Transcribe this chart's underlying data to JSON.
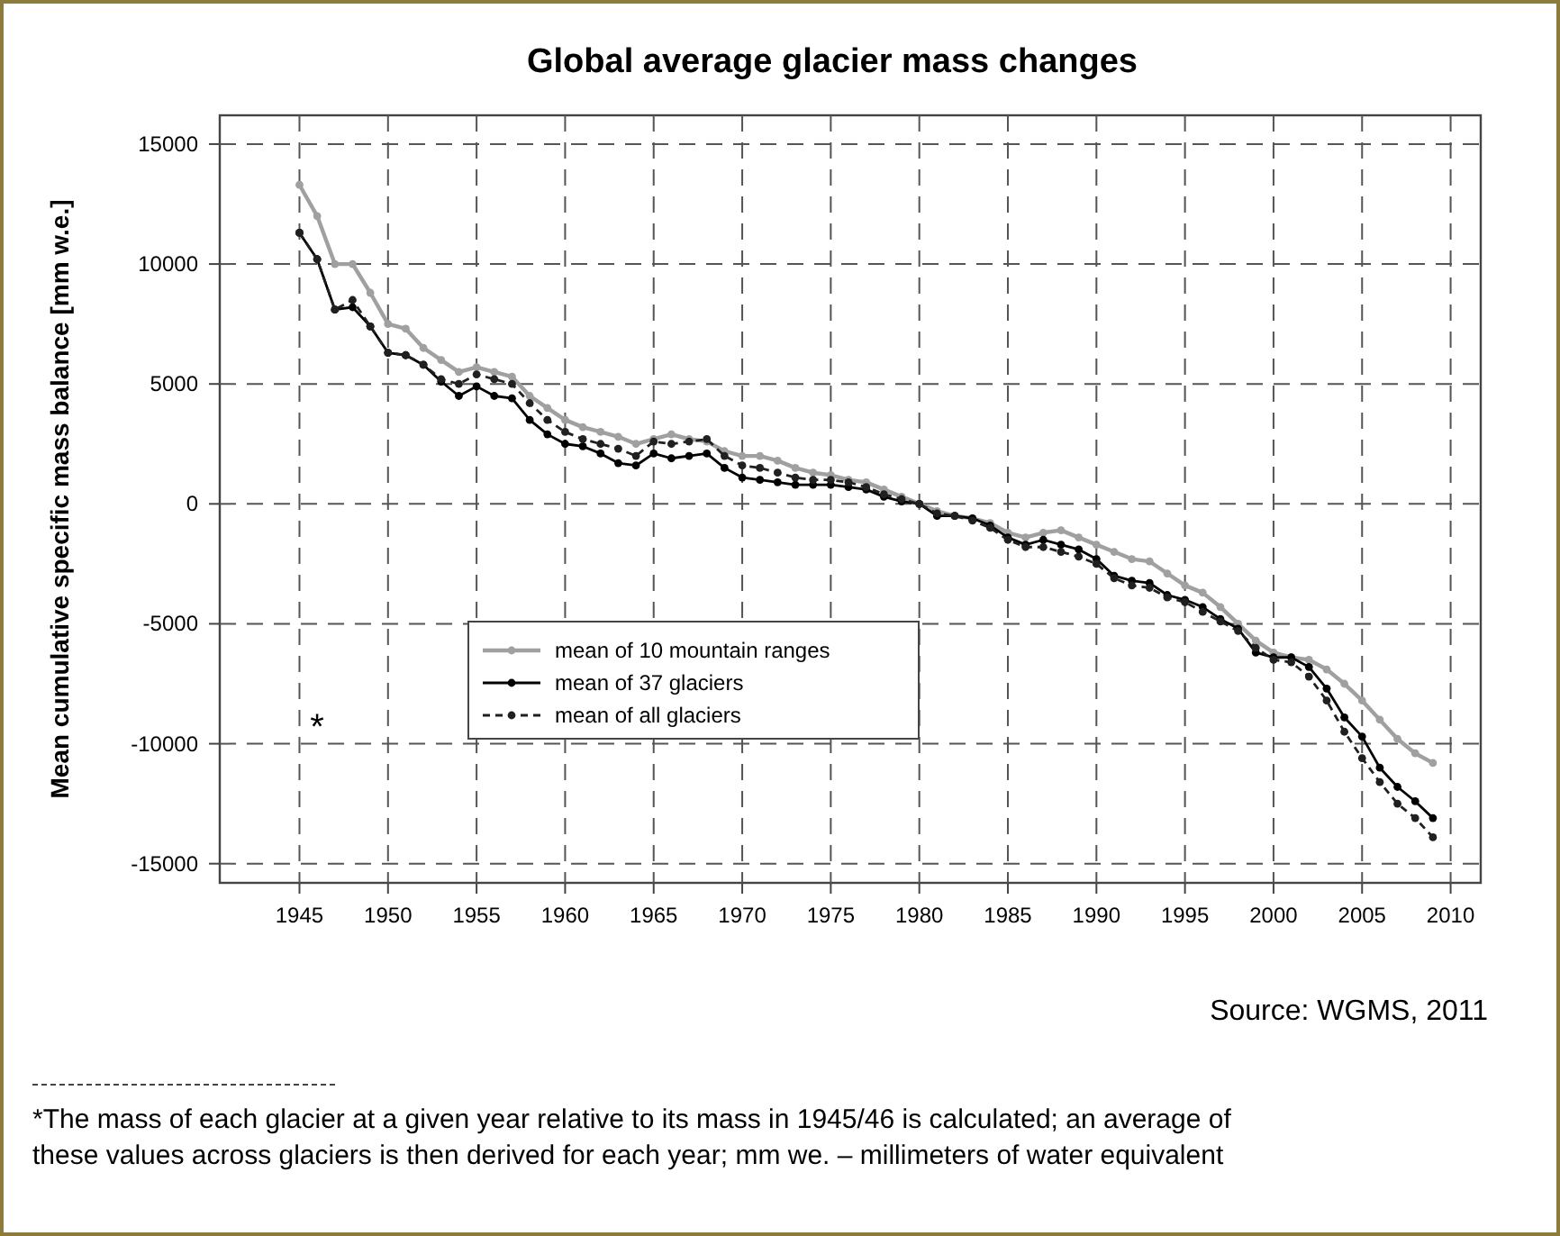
{
  "chart_data": {
    "type": "line",
    "title": "Global average glacier mass changes",
    "ylabel": "Mean cumulative specific mass balance [mm w.e.]",
    "x": [
      1945,
      1946,
      1947,
      1948,
      1949,
      1950,
      1951,
      1952,
      1953,
      1954,
      1955,
      1956,
      1957,
      1958,
      1959,
      1960,
      1961,
      1962,
      1963,
      1964,
      1965,
      1966,
      1967,
      1968,
      1969,
      1970,
      1971,
      1972,
      1973,
      1974,
      1975,
      1976,
      1977,
      1978,
      1979,
      1980,
      1981,
      1982,
      1983,
      1984,
      1985,
      1986,
      1987,
      1988,
      1989,
      1990,
      1991,
      1992,
      1993,
      1994,
      1995,
      1996,
      1997,
      1998,
      1999,
      2000,
      2001,
      2002,
      2003,
      2004,
      2005,
      2006,
      2007,
      2008,
      2009
    ],
    "series": [
      {
        "name": "mean of 10 mountain ranges",
        "color": "#a0a0a0",
        "line_style": "solid",
        "values": [
          13300,
          12000,
          10000,
          10000,
          8800,
          7500,
          7300,
          6500,
          6000,
          5500,
          5700,
          5500,
          5300,
          4500,
          4000,
          3500,
          3200,
          3000,
          2800,
          2500,
          2700,
          2900,
          2700,
          2600,
          2200,
          2000,
          2000,
          1800,
          1500,
          1300,
          1200,
          1000,
          900,
          600,
          300,
          0,
          -300,
          -500,
          -600,
          -800,
          -1200,
          -1400,
          -1200,
          -1100,
          -1400,
          -1700,
          -2000,
          -2300,
          -2400,
          -2900,
          -3400,
          -3700,
          -4300,
          -5000,
          -5700,
          -6200,
          -6400,
          -6500,
          -6900,
          -7500,
          -8200,
          -9000,
          -9800,
          -10400,
          -10800
        ]
      },
      {
        "name": "mean of 37 glaciers",
        "color": "#000000",
        "line_style": "solid",
        "values": [
          11300,
          10200,
          8100,
          8200,
          7400,
          6300,
          6200,
          5800,
          5100,
          4500,
          4900,
          4500,
          4400,
          3500,
          2900,
          2500,
          2400,
          2100,
          1700,
          1600,
          2100,
          1900,
          2000,
          2100,
          1500,
          1100,
          1000,
          900,
          800,
          800,
          800,
          700,
          600,
          300,
          100,
          0,
          -500,
          -500,
          -600,
          -900,
          -1400,
          -1700,
          -1500,
          -1700,
          -1900,
          -2300,
          -3000,
          -3200,
          -3300,
          -3800,
          -4000,
          -4300,
          -4800,
          -5200,
          -6200,
          -6400,
          -6400,
          -6800,
          -7700,
          -8900,
          -9700,
          -11000,
          -11800,
          -12400,
          -13100
        ]
      },
      {
        "name": "mean of all glaciers",
        "color": "#202020",
        "line_style": "dashed",
        "values": [
          11300,
          10200,
          8100,
          8500,
          7400,
          6300,
          6200,
          5800,
          5200,
          5000,
          5400,
          5200,
          5000,
          4200,
          3500,
          3000,
          2700,
          2500,
          2300,
          2000,
          2600,
          2500,
          2600,
          2700,
          2000,
          1600,
          1500,
          1300,
          1100,
          1000,
          1000,
          900,
          700,
          400,
          200,
          0,
          -400,
          -500,
          -700,
          -1000,
          -1500,
          -1800,
          -1800,
          -2000,
          -2200,
          -2500,
          -3100,
          -3400,
          -3500,
          -3900,
          -4100,
          -4500,
          -4900,
          -5300,
          -6000,
          -6500,
          -6600,
          -7200,
          -8200,
          -9500,
          -10600,
          -11600,
          -12500,
          -13100,
          -13900
        ]
      }
    ],
    "xlim": [
      1940.5,
      2011.7
    ],
    "xticks": [
      1945,
      1950,
      1955,
      1960,
      1965,
      1970,
      1975,
      1980,
      1985,
      1990,
      1995,
      2000,
      2005,
      2010
    ],
    "ylim": [
      -15800,
      16200
    ],
    "yticks": [
      -15000,
      -10000,
      -5000,
      0,
      5000,
      10000,
      15000
    ],
    "grid": true,
    "legend": "bottom left",
    "marker": "circle",
    "annotations": [
      "*",
      "Source:  WGMS, 2011",
      "*The mass of each glacier at a given year relative to its mass in 1945/46 is calculated; an average of these values across glaciers is then derived for each year; mm we. – millimeters of water equivalent"
    ]
  }
}
